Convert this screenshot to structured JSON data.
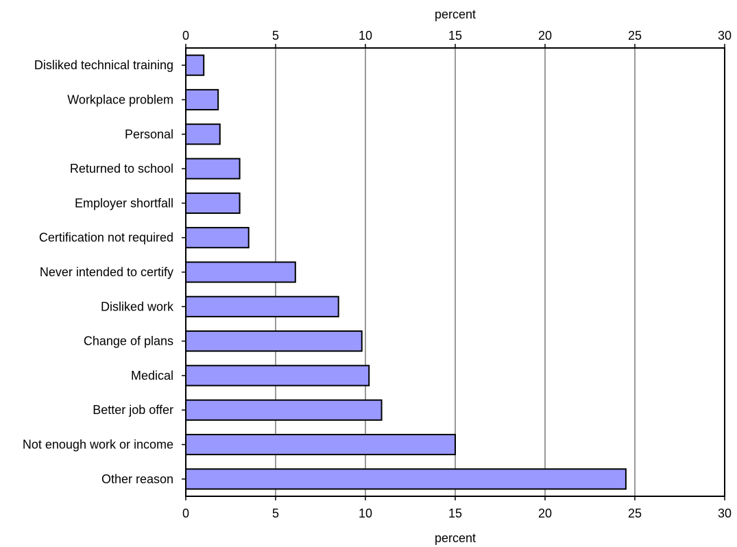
{
  "chart_data": {
    "type": "bar",
    "orientation": "horizontal",
    "categories": [
      "Disliked technical training",
      "Workplace problem",
      "Personal",
      "Returned to school",
      "Employer shortfall",
      "Certification not required",
      "Never intended to certify",
      "Disliked work",
      "Change of plans",
      "Medical",
      "Better job offer",
      "Not enough work or income",
      "Other reason"
    ],
    "values": [
      1.0,
      1.8,
      1.9,
      3.0,
      3.0,
      3.5,
      6.1,
      8.5,
      9.8,
      10.2,
      10.9,
      15.0,
      24.5
    ],
    "xlabel_top": "percent",
    "xlabel_bottom": "percent",
    "xlim": [
      0,
      30
    ],
    "ticks": [
      0,
      5,
      10,
      15,
      20,
      25,
      30
    ],
    "ticks_top_labels": [
      "0",
      "5",
      "10",
      "15",
      "20",
      "25",
      "30"
    ],
    "ticks_bottom_labels": [
      "0",
      "5",
      "10",
      "15",
      "20",
      "25",
      "30"
    ],
    "grid": true,
    "colors": {
      "bar_fill": "#9999ff",
      "bar_stroke": "#000000",
      "grid": "#999999"
    }
  }
}
